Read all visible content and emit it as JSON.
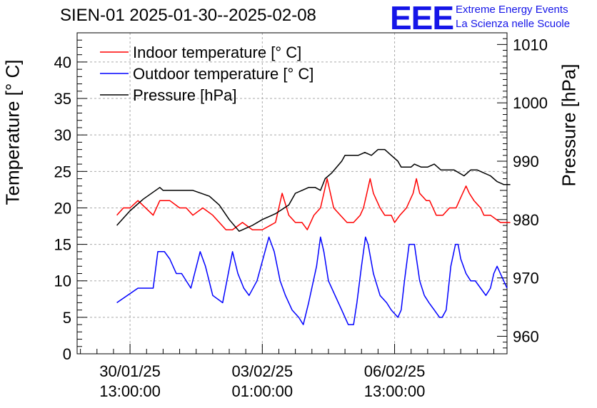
{
  "chart_data": {
    "type": "line",
    "title": "SIEN-01 2025-01-30--2025-02-08",
    "brand": {
      "logo": "EEE",
      "line1": "Extreme Energy Events",
      "line2": "La Scienza nelle Scuole"
    },
    "ylabel_left": "Temperature [° C]",
    "ylabel_right": "Pressure [hPa]",
    "ylim_left": [
      0,
      44
    ],
    "ylim_right": [
      957,
      1012
    ],
    "yticks_left": [
      "0",
      "5",
      "10",
      "15",
      "20",
      "25",
      "30",
      "35",
      "40"
    ],
    "yticks_right": [
      "960",
      "970",
      "980",
      "990",
      "1000",
      "1010"
    ],
    "xlim": [
      -0.8,
      5.7
    ],
    "xticks": [
      {
        "x": 0,
        "line1": "30/01/25",
        "line2": "13:00:00"
      },
      {
        "x": 2,
        "line1": "03/02/25",
        "line2": "01:00:00"
      },
      {
        "x": 4,
        "line1": "06/02/25",
        "line2": "13:00:00"
      }
    ],
    "grid": true,
    "legend": {
      "position": "top-left",
      "items": [
        {
          "label": "Indoor temperature [° C]",
          "color": "#ff0000"
        },
        {
          "label": "Outdoor temperature [° C]",
          "color": "#0000ff"
        },
        {
          "label": "Pressure [hPa]",
          "color": "#000000"
        }
      ]
    },
    "series": [
      {
        "name": "Indoor temperature [° C]",
        "axis": "left",
        "color": "#ff0000",
        "points": [
          [
            -0.2,
            19
          ],
          [
            -0.1,
            20
          ],
          [
            0.0,
            20
          ],
          [
            0.12,
            21
          ],
          [
            0.35,
            19
          ],
          [
            0.45,
            21
          ],
          [
            0.6,
            21
          ],
          [
            0.75,
            20
          ],
          [
            0.85,
            20
          ],
          [
            0.95,
            19
          ],
          [
            1.1,
            20
          ],
          [
            1.25,
            19
          ],
          [
            1.45,
            17
          ],
          [
            1.55,
            17
          ],
          [
            1.7,
            18
          ],
          [
            1.85,
            17
          ],
          [
            2.0,
            17
          ],
          [
            2.2,
            18
          ],
          [
            2.3,
            22
          ],
          [
            2.4,
            19
          ],
          [
            2.5,
            18
          ],
          [
            2.6,
            18
          ],
          [
            2.68,
            17
          ],
          [
            2.78,
            19
          ],
          [
            2.88,
            20
          ],
          [
            2.93,
            22
          ],
          [
            2.98,
            24
          ],
          [
            3.08,
            20
          ],
          [
            3.18,
            19
          ],
          [
            3.28,
            18
          ],
          [
            3.38,
            18
          ],
          [
            3.48,
            19
          ],
          [
            3.53,
            20
          ],
          [
            3.58,
            22
          ],
          [
            3.63,
            24
          ],
          [
            3.68,
            22
          ],
          [
            3.73,
            21
          ],
          [
            3.78,
            20
          ],
          [
            3.85,
            19
          ],
          [
            3.95,
            19
          ],
          [
            4.0,
            18
          ],
          [
            4.08,
            19
          ],
          [
            4.18,
            20
          ],
          [
            4.28,
            22
          ],
          [
            4.33,
            24
          ],
          [
            4.38,
            22
          ],
          [
            4.48,
            21
          ],
          [
            4.53,
            21
          ],
          [
            4.58,
            20
          ],
          [
            4.63,
            19
          ],
          [
            4.73,
            19
          ],
          [
            4.83,
            20
          ],
          [
            4.93,
            20
          ],
          [
            4.98,
            21
          ],
          [
            5.03,
            22
          ],
          [
            5.08,
            23
          ],
          [
            5.13,
            22
          ],
          [
            5.2,
            21
          ],
          [
            5.3,
            20
          ],
          [
            5.35,
            19
          ],
          [
            5.45,
            19
          ],
          [
            5.6,
            18
          ],
          [
            5.75,
            18
          ]
        ]
      },
      {
        "name": "Outdoor temperature [° C]",
        "axis": "left",
        "color": "#0000ff",
        "points": [
          [
            -0.2,
            7
          ],
          [
            0.12,
            9
          ],
          [
            0.35,
            9
          ],
          [
            0.42,
            14
          ],
          [
            0.52,
            14
          ],
          [
            0.6,
            13
          ],
          [
            0.7,
            11
          ],
          [
            0.78,
            11
          ],
          [
            0.92,
            9
          ],
          [
            1.06,
            14
          ],
          [
            1.14,
            12
          ],
          [
            1.25,
            8
          ],
          [
            1.4,
            7
          ],
          [
            1.55,
            14
          ],
          [
            1.63,
            11
          ],
          [
            1.72,
            9
          ],
          [
            1.8,
            8
          ],
          [
            1.92,
            10
          ],
          [
            2.1,
            16
          ],
          [
            2.18,
            14
          ],
          [
            2.27,
            10
          ],
          [
            2.35,
            8
          ],
          [
            2.45,
            6
          ],
          [
            2.55,
            5
          ],
          [
            2.62,
            4
          ],
          [
            2.7,
            7
          ],
          [
            2.82,
            12
          ],
          [
            2.88,
            16
          ],
          [
            2.93,
            14
          ],
          [
            3.0,
            10
          ],
          [
            3.1,
            8
          ],
          [
            3.2,
            6
          ],
          [
            3.3,
            4
          ],
          [
            3.38,
            4
          ],
          [
            3.43,
            7
          ],
          [
            3.5,
            12
          ],
          [
            3.56,
            16
          ],
          [
            3.6,
            15
          ],
          [
            3.68,
            11
          ],
          [
            3.78,
            8
          ],
          [
            3.88,
            7
          ],
          [
            3.95,
            6
          ],
          [
            4.05,
            5
          ],
          [
            4.1,
            6
          ],
          [
            4.15,
            10
          ],
          [
            4.22,
            15
          ],
          [
            4.3,
            15
          ],
          [
            4.38,
            10
          ],
          [
            4.45,
            8
          ],
          [
            4.52,
            7
          ],
          [
            4.6,
            6
          ],
          [
            4.68,
            5
          ],
          [
            4.72,
            5
          ],
          [
            4.78,
            6
          ],
          [
            4.85,
            12
          ],
          [
            4.92,
            15
          ],
          [
            4.96,
            15
          ],
          [
            5.0,
            13
          ],
          [
            5.08,
            11
          ],
          [
            5.15,
            10
          ],
          [
            5.22,
            10
          ],
          [
            5.3,
            9
          ],
          [
            5.38,
            8
          ],
          [
            5.45,
            9
          ],
          [
            5.5,
            11
          ],
          [
            5.55,
            12
          ],
          [
            5.6,
            11
          ],
          [
            5.65,
            10
          ],
          [
            5.7,
            9
          ]
        ]
      },
      {
        "name": "Pressure [hPa]",
        "axis": "right",
        "color": "#000000",
        "points": [
          [
            -0.2,
            979
          ],
          [
            0.0,
            981.5
          ],
          [
            0.2,
            983.5
          ],
          [
            0.45,
            985.5
          ],
          [
            0.5,
            985
          ],
          [
            0.62,
            985
          ],
          [
            0.95,
            985
          ],
          [
            1.2,
            984
          ],
          [
            1.35,
            982.5
          ],
          [
            1.5,
            980
          ],
          [
            1.65,
            978
          ],
          [
            1.75,
            978.5
          ],
          [
            1.85,
            979
          ],
          [
            2.0,
            980
          ],
          [
            2.2,
            981
          ],
          [
            2.4,
            982.5
          ],
          [
            2.5,
            984.5
          ],
          [
            2.6,
            985
          ],
          [
            2.7,
            985.5
          ],
          [
            2.8,
            985.5
          ],
          [
            2.88,
            985
          ],
          [
            2.95,
            987
          ],
          [
            3.05,
            988
          ],
          [
            3.2,
            990
          ],
          [
            3.25,
            991
          ],
          [
            3.35,
            991
          ],
          [
            3.45,
            991
          ],
          [
            3.55,
            991.5
          ],
          [
            3.65,
            991
          ],
          [
            3.75,
            992
          ],
          [
            3.85,
            992
          ],
          [
            3.9,
            991.5
          ],
          [
            3.95,
            991
          ],
          [
            4.05,
            990
          ],
          [
            4.1,
            989
          ],
          [
            4.25,
            989
          ],
          [
            4.3,
            989.5
          ],
          [
            4.4,
            989
          ],
          [
            4.5,
            989
          ],
          [
            4.6,
            989.5
          ],
          [
            4.7,
            988.5
          ],
          [
            4.8,
            988.5
          ],
          [
            4.9,
            988.5
          ],
          [
            5.05,
            987.5
          ],
          [
            5.15,
            988.5
          ],
          [
            5.25,
            988.5
          ],
          [
            5.35,
            988
          ],
          [
            5.45,
            987.5
          ],
          [
            5.55,
            986.5
          ],
          [
            5.65,
            986
          ],
          [
            5.75,
            986
          ]
        ]
      }
    ]
  }
}
